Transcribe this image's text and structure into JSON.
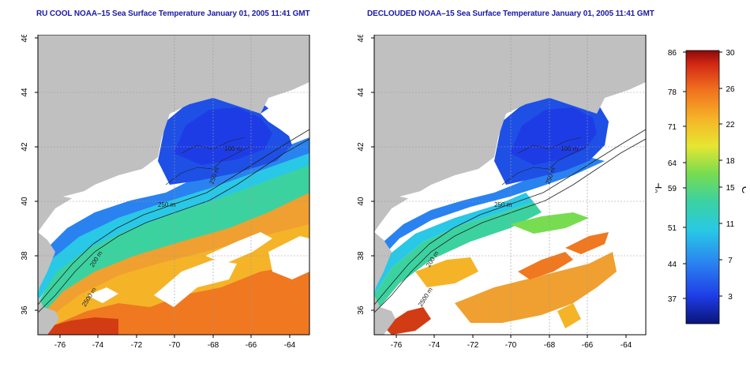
{
  "panels": [
    {
      "title": "RU COOL NOAA–15 Sea Surface Temperature January 01, 2005 11:41 GMT",
      "y_ticks": [
        "46",
        "44",
        "42",
        "40",
        "38",
        "36"
      ],
      "x_ticks": [
        "-76",
        "-74",
        "-72",
        "-70",
        "-68",
        "-66",
        "-64"
      ],
      "contour_labels": [
        "100 m",
        "250 m",
        "2500 m",
        "250 m",
        "200 m"
      ]
    },
    {
      "title": "DECLOUDED NOAA–15 Sea Surface Temperature January 01, 2005 11:41 GMT",
      "y_ticks": [
        "46",
        "44",
        "42",
        "40",
        "38",
        "36"
      ],
      "x_ticks": [
        "-76",
        "-74",
        "-72",
        "-70",
        "-68",
        "-66",
        "-64"
      ],
      "contour_labels": [
        "100 m",
        "250 m",
        "2500 m",
        "250 m",
        "200 m"
      ]
    }
  ],
  "colorbar": {
    "fahrenheit_ticks": [
      "86",
      "78",
      "71",
      "64",
      "59",
      "51",
      "44",
      "37"
    ],
    "celsius_ticks": [
      "30",
      "26",
      "22",
      "18",
      "15",
      "11",
      "7",
      "3"
    ],
    "fahrenheit_unit": "°F",
    "celsius_unit": "°C",
    "colors": [
      "#0a1478",
      "#1e3ce6",
      "#2a82f0",
      "#28c8e6",
      "#3cd2a0",
      "#78dc50",
      "#e6e632",
      "#f5b428",
      "#f06e1e",
      "#d22814",
      "#8c0a0a"
    ]
  },
  "colors": {
    "land": "#c0c0c0",
    "cloud": "#ffffff",
    "title": "#1a1aa6"
  }
}
